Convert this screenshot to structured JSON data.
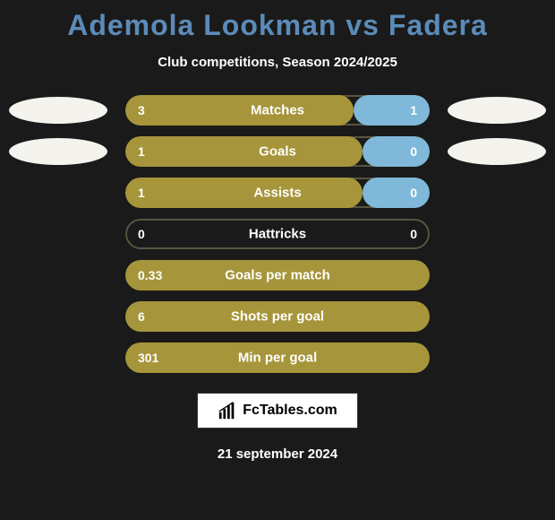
{
  "title": "Ademola Lookman vs Fadera",
  "subtitle": "Club competitions, Season 2024/2025",
  "date": "21 september 2024",
  "logo_text": "FcTables.com",
  "colors": {
    "left": "#a6953a",
    "right": "#7fb8d8",
    "border": "#5a5540",
    "bg": "#1a1a1a"
  },
  "ellipses": {
    "leftRows": [
      0,
      1
    ],
    "rightRows": [
      0,
      1
    ]
  },
  "rows": [
    {
      "label": "Matches",
      "left": "3",
      "right": "1",
      "leftPct": 75,
      "rightPct": 25
    },
    {
      "label": "Goals",
      "left": "1",
      "right": "0",
      "leftPct": 78,
      "rightPct": 22
    },
    {
      "label": "Assists",
      "left": "1",
      "right": "0",
      "leftPct": 78,
      "rightPct": 22
    },
    {
      "label": "Hattricks",
      "left": "0",
      "right": "0",
      "leftPct": 0,
      "rightPct": 0
    },
    {
      "label": "Goals per match",
      "left": "0.33",
      "right": "",
      "leftPct": 100,
      "rightPct": 0
    },
    {
      "label": "Shots per goal",
      "left": "6",
      "right": "",
      "leftPct": 100,
      "rightPct": 0
    },
    {
      "label": "Min per goal",
      "left": "301",
      "right": "",
      "leftPct": 100,
      "rightPct": 0
    }
  ]
}
